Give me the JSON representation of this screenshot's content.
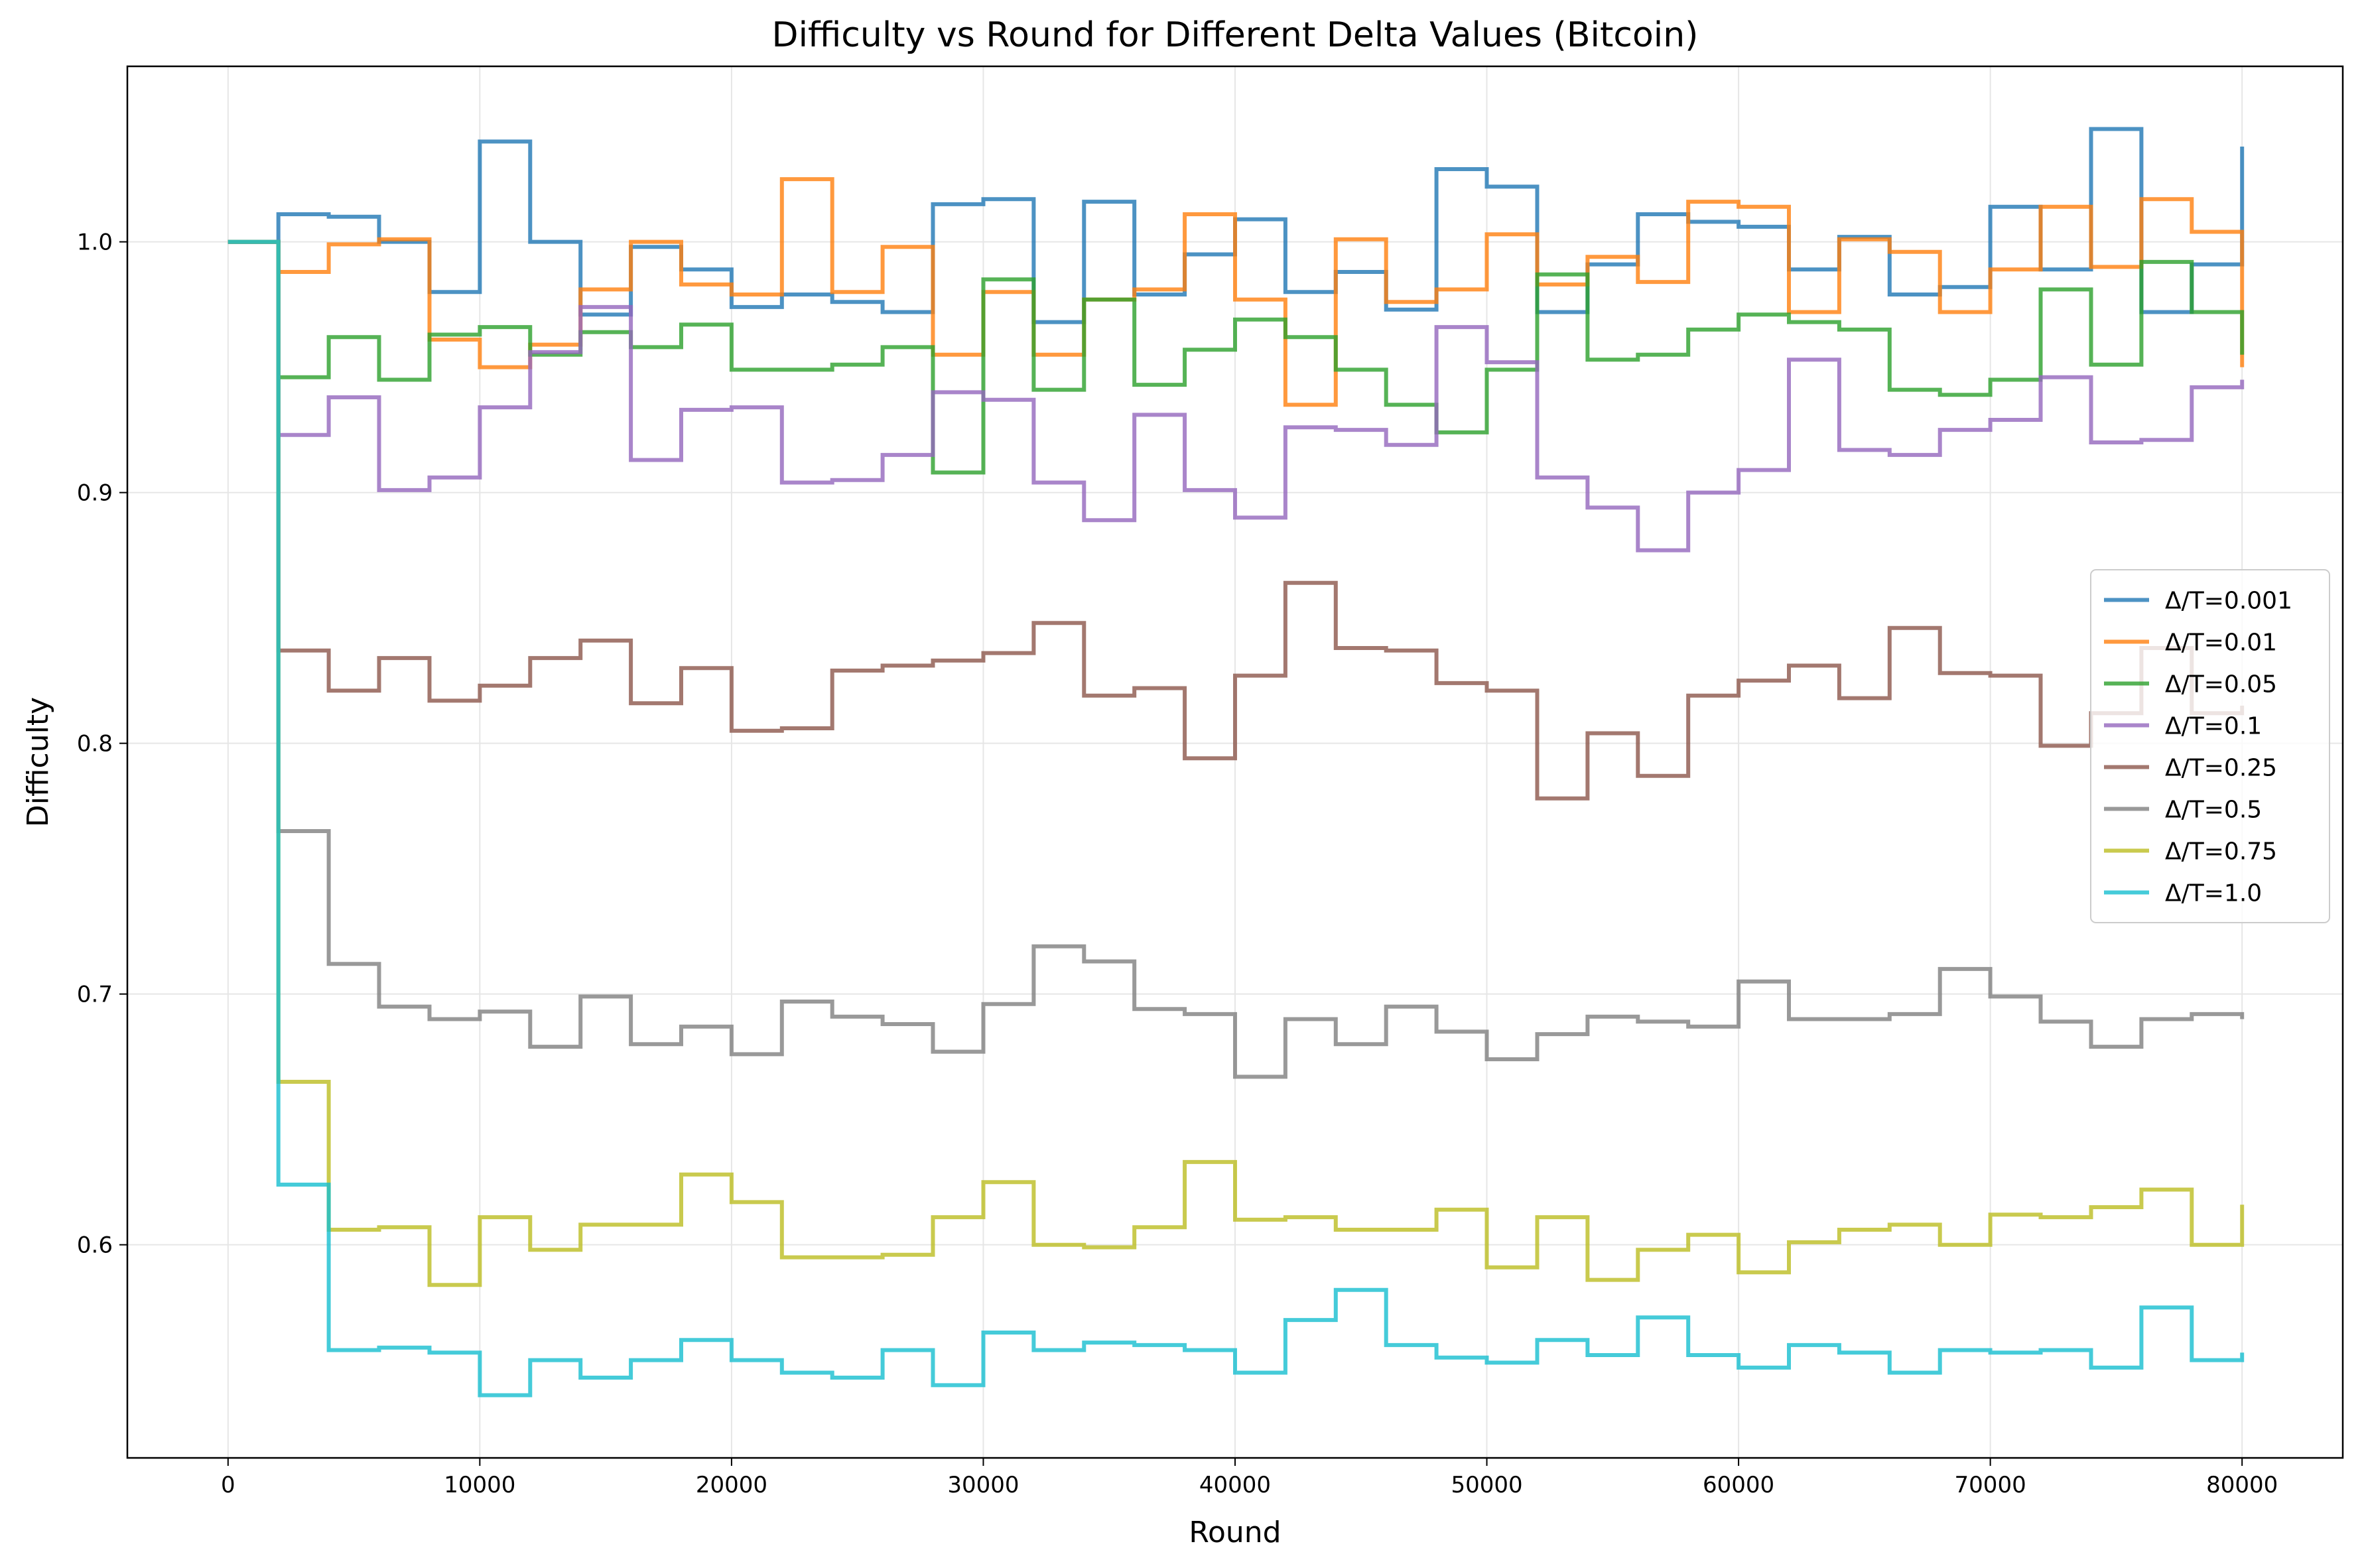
{
  "chart_data": {
    "type": "line",
    "title": "Difficulty vs Round for Different Delta Values (Bitcoin)",
    "xlabel": "Round",
    "ylabel": "Difficulty",
    "xlim": [
      -4000,
      84000
    ],
    "ylim": [
      0.515,
      1.07
    ],
    "xticks": [
      0,
      10000,
      20000,
      30000,
      40000,
      50000,
      60000,
      70000,
      80000
    ],
    "yticks": [
      0.6,
      0.7,
      0.8,
      0.9,
      1.0
    ],
    "xtick_labels": [
      "0",
      "10000",
      "20000",
      "30000",
      "40000",
      "50000",
      "60000",
      "70000",
      "80000"
    ],
    "ytick_labels": [
      "0.6",
      "0.7",
      "0.8",
      "0.9",
      "1.0"
    ],
    "grid": true,
    "legend_position": "center-right",
    "step_width": 2000,
    "x": [
      0,
      2000,
      4000,
      6000,
      8000,
      10000,
      12000,
      14000,
      16000,
      18000,
      20000,
      22000,
      24000,
      26000,
      28000,
      30000,
      32000,
      34000,
      36000,
      38000,
      40000,
      42000,
      44000,
      46000,
      48000,
      50000,
      52000,
      54000,
      56000,
      58000,
      60000,
      62000,
      64000,
      66000,
      68000,
      70000,
      72000,
      74000,
      76000,
      78000,
      80000
    ],
    "series": [
      {
        "name": "Δ/T=0.001",
        "color": "#1f77b4",
        "values": [
          1.0,
          1.011,
          1.01,
          1.0,
          0.98,
          1.04,
          1.0,
          0.971,
          0.998,
          0.989,
          0.974,
          0.979,
          0.976,
          0.972,
          1.015,
          1.017,
          0.968,
          1.016,
          0.979,
          0.995,
          1.009,
          0.98,
          0.988,
          0.973,
          1.029,
          1.022,
          0.972,
          0.991,
          1.011,
          1.008,
          1.006,
          0.989,
          1.002,
          0.979,
          0.982,
          1.014,
          0.989,
          1.045,
          0.972,
          0.991,
          1.038
        ]
      },
      {
        "name": "Δ/T=0.01",
        "color": "#ff7f0e",
        "values": [
          1.0,
          0.988,
          0.999,
          1.001,
          0.961,
          0.95,
          0.959,
          0.981,
          1.0,
          0.983,
          0.979,
          1.025,
          0.98,
          0.998,
          0.955,
          0.98,
          0.955,
          0.977,
          0.981,
          1.011,
          0.977,
          0.935,
          1.001,
          0.976,
          0.981,
          1.003,
          0.983,
          0.994,
          0.984,
          1.016,
          1.014,
          0.972,
          1.001,
          0.996,
          0.972,
          0.989,
          1.014,
          0.99,
          1.017,
          1.004,
          0.95
        ]
      },
      {
        "name": "Δ/T=0.05",
        "color": "#2ca02c",
        "values": [
          1.0,
          0.946,
          0.962,
          0.945,
          0.963,
          0.966,
          0.955,
          0.964,
          0.958,
          0.967,
          0.949,
          0.949,
          0.951,
          0.958,
          0.908,
          0.985,
          0.941,
          0.977,
          0.943,
          0.957,
          0.969,
          0.962,
          0.949,
          0.935,
          0.924,
          0.949,
          0.987,
          0.953,
          0.955,
          0.965,
          0.971,
          0.968,
          0.965,
          0.941,
          0.939,
          0.945,
          0.981,
          0.951,
          0.992,
          0.972,
          0.955
        ]
      },
      {
        "name": "Δ/T=0.1",
        "color": "#9467bd",
        "values": [
          1.0,
          0.923,
          0.938,
          0.901,
          0.906,
          0.934,
          0.956,
          0.974,
          0.913,
          0.933,
          0.934,
          0.904,
          0.905,
          0.915,
          0.94,
          0.937,
          0.904,
          0.889,
          0.931,
          0.901,
          0.89,
          0.926,
          0.925,
          0.919,
          0.966,
          0.952,
          0.906,
          0.894,
          0.877,
          0.9,
          0.909,
          0.953,
          0.917,
          0.915,
          0.925,
          0.929,
          0.946,
          0.92,
          0.921,
          0.942,
          0.945
        ]
      },
      {
        "name": "Δ/T=0.25",
        "color": "#8c564b",
        "values": [
          1.0,
          0.837,
          0.821,
          0.834,
          0.817,
          0.823,
          0.834,
          0.841,
          0.816,
          0.83,
          0.805,
          0.806,
          0.829,
          0.831,
          0.833,
          0.836,
          0.848,
          0.819,
          0.822,
          0.794,
          0.827,
          0.864,
          0.838,
          0.837,
          0.824,
          0.821,
          0.778,
          0.804,
          0.787,
          0.819,
          0.825,
          0.831,
          0.818,
          0.846,
          0.828,
          0.827,
          0.799,
          0.812,
          0.838,
          0.812,
          0.815
        ]
      },
      {
        "name": "Δ/T=0.5",
        "color": "#7f7f7f",
        "values": [
          1.0,
          0.765,
          0.712,
          0.695,
          0.69,
          0.693,
          0.679,
          0.699,
          0.68,
          0.687,
          0.676,
          0.697,
          0.691,
          0.688,
          0.677,
          0.696,
          0.719,
          0.713,
          0.694,
          0.692,
          0.667,
          0.69,
          0.68,
          0.695,
          0.685,
          0.674,
          0.684,
          0.691,
          0.689,
          0.687,
          0.705,
          0.69,
          0.69,
          0.692,
          0.71,
          0.699,
          0.689,
          0.679,
          0.69,
          0.692,
          0.69
        ]
      },
      {
        "name": "Δ/T=0.75",
        "color": "#bcbd22",
        "values": [
          1.0,
          0.665,
          0.606,
          0.607,
          0.584,
          0.611,
          0.598,
          0.608,
          0.608,
          0.628,
          0.617,
          0.595,
          0.595,
          0.596,
          0.611,
          0.625,
          0.6,
          0.599,
          0.607,
          0.633,
          0.61,
          0.611,
          0.606,
          0.606,
          0.614,
          0.591,
          0.611,
          0.586,
          0.598,
          0.604,
          0.589,
          0.601,
          0.606,
          0.608,
          0.6,
          0.612,
          0.611,
          0.615,
          0.622,
          0.6,
          0.616
        ]
      },
      {
        "name": "Δ/T=1.0",
        "color": "#17becf",
        "values": [
          1.0,
          0.624,
          0.558,
          0.559,
          0.557,
          0.54,
          0.554,
          0.547,
          0.554,
          0.562,
          0.554,
          0.549,
          0.547,
          0.558,
          0.544,
          0.565,
          0.558,
          0.561,
          0.56,
          0.558,
          0.549,
          0.57,
          0.582,
          0.56,
          0.555,
          0.553,
          0.562,
          0.556,
          0.571,
          0.556,
          0.551,
          0.56,
          0.557,
          0.549,
          0.558,
          0.557,
          0.558,
          0.551,
          0.575,
          0.554,
          0.557
        ]
      }
    ]
  }
}
